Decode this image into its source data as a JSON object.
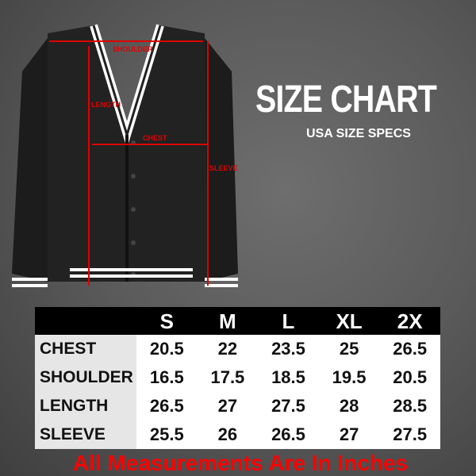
{
  "heading": {
    "title": "SIZE CHART",
    "subtitle": "USA SIZE SPECS"
  },
  "diagram": {
    "labels": {
      "shoulder": "SHOULDER",
      "length": "LENGTH",
      "chest": "CHEST",
      "sleeve": "SLEEVE"
    },
    "garment": "black v-neck cardigan with white stripe trim",
    "measure_line_color": "#e00000"
  },
  "table": {
    "sizes": [
      "S",
      "M",
      "L",
      "XL",
      "2X"
    ],
    "rows": [
      {
        "label": "CHEST",
        "values": [
          "20.5",
          "22",
          "23.5",
          "25",
          "26.5"
        ]
      },
      {
        "label": "SHOULDER",
        "values": [
          "16.5",
          "17.5",
          "18.5",
          "19.5",
          "20.5"
        ]
      },
      {
        "label": "LENGTH",
        "values": [
          "26.5",
          "27",
          "27.5",
          "28",
          "28.5"
        ]
      },
      {
        "label": "SLEEVE",
        "values": [
          "25.5",
          "26",
          "26.5",
          "27",
          "27.5"
        ]
      }
    ]
  },
  "note": "All Measurements Are In Inches"
}
